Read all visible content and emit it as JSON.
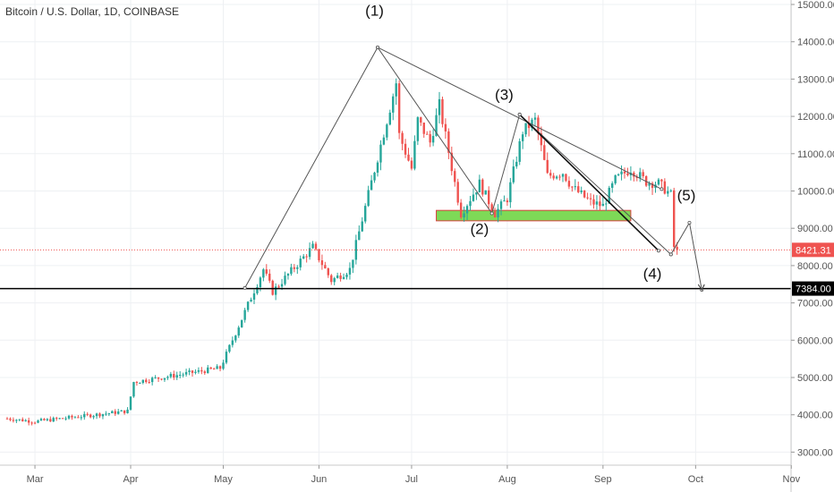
{
  "title": "Bitcoin / U.S. Dollar, 1D, COINBASE",
  "colors": {
    "up": "#26a69a",
    "down": "#ef5350",
    "grid": "#eef0f3",
    "price_line": "#ef5350",
    "support_fill": "#7ed957",
    "support_stroke": "#d94040",
    "level_line": "#000000",
    "trend_line": "#555555"
  },
  "chart_data": {
    "type": "candlestick",
    "y_axis_ticks": [
      "15000.00",
      "14000.00",
      "13000.00",
      "12000.00",
      "11000.00",
      "10000.00",
      "9000.00",
      "8000.00",
      "7000.00",
      "6000.00",
      "5000.00",
      "4000.00",
      "3000.00"
    ],
    "x_axis_ticks": [
      "Mar",
      "Apr",
      "May",
      "Jun",
      "Jul",
      "Aug",
      "Sep",
      "Oct",
      "Nov"
    ],
    "ylim": [
      2700,
      15150
    ],
    "grid": true,
    "current_price": {
      "value": 8421.31,
      "label": "8421.31"
    },
    "horizontal_level": {
      "value": 7384.0,
      "label": "7384.00"
    },
    "support_zone": {
      "from_day": 139,
      "to_day": 202,
      "low": 9200,
      "high": 9480
    },
    "wave_labels": [
      {
        "text": "(1)",
        "day": 119,
        "price": 14700
      },
      {
        "text": "(2)",
        "day": 153,
        "price": 8850
      },
      {
        "text": "(3)",
        "day": 161,
        "price": 12450
      },
      {
        "text": "(4)",
        "day": 209,
        "price": 7650
      },
      {
        "text": "(5)",
        "day": 220,
        "price": 9750
      }
    ],
    "pattern_lines": [
      {
        "points": [
          [
            77,
            7400
          ],
          [
            120,
            13850
          ],
          [
            157,
            9400
          ],
          [
            166,
            12050
          ],
          [
            215,
            8300
          ]
        ],
        "style": "thin"
      },
      {
        "points": [
          [
            120,
            13850
          ],
          [
            212,
            10050
          ]
        ],
        "style": "thin"
      },
      {
        "points": [
          [
            166,
            12050
          ],
          [
            211,
            8400
          ]
        ],
        "style": "bold"
      },
      {
        "points": [
          [
            215,
            8300
          ],
          [
            221,
            9150
          ],
          [
            225,
            7350
          ]
        ],
        "style": "thin"
      }
    ],
    "anchors": [
      {
        "label": "Feb 20",
        "price": 3900
      },
      {
        "label": "Mar 1",
        "price": 3820
      },
      {
        "label": "Mar 31",
        "price": 4100
      },
      {
        "label": "Apr 2",
        "price": 4880
      },
      {
        "label": "Apr 30",
        "price": 5250
      },
      {
        "label": "May 14",
        "price": 7900
      },
      {
        "label": "May 17",
        "price": 7300
      },
      {
        "label": "May 30",
        "price": 8500
      },
      {
        "label": "Jun 5",
        "price": 7600
      },
      {
        "label": "Jun 11",
        "price": 7900
      },
      {
        "label": "Jun 26",
        "price": 12900
      },
      {
        "label": "Jun 27",
        "price": 11500
      },
      {
        "label": "Jul 1",
        "price": 10600
      },
      {
        "label": "Jul 3",
        "price": 11900
      },
      {
        "label": "Jul 7",
        "price": 11300
      },
      {
        "label": "Jul 10",
        "price": 12300
      },
      {
        "label": "Jul 16",
        "price": 9800
      },
      {
        "label": "Jul 17",
        "price": 9400
      },
      {
        "label": "Jul 23",
        "price": 10200
      },
      {
        "label": "Jul 28",
        "price": 9400
      },
      {
        "label": "Aug 1",
        "price": 9800
      },
      {
        "label": "Aug 6",
        "price": 11600
      },
      {
        "label": "Aug 10",
        "price": 11900
      },
      {
        "label": "Aug 14",
        "price": 10400
      },
      {
        "label": "Aug 19",
        "price": 10500
      },
      {
        "label": "Aug 22",
        "price": 10100
      },
      {
        "label": "Aug 28",
        "price": 9700
      },
      {
        "label": "Sep 1",
        "price": 9600
      },
      {
        "label": "Sep 5",
        "price": 10300
      },
      {
        "label": "Sep 10",
        "price": 10600
      },
      {
        "label": "Sep 15",
        "price": 10250
      },
      {
        "label": "Sep 19",
        "price": 10200
      },
      {
        "label": "Sep 23",
        "price": 9900
      },
      {
        "label": "Sep 24",
        "price": 8500
      },
      {
        "label": "Sep 25",
        "price": 8421
      }
    ]
  }
}
